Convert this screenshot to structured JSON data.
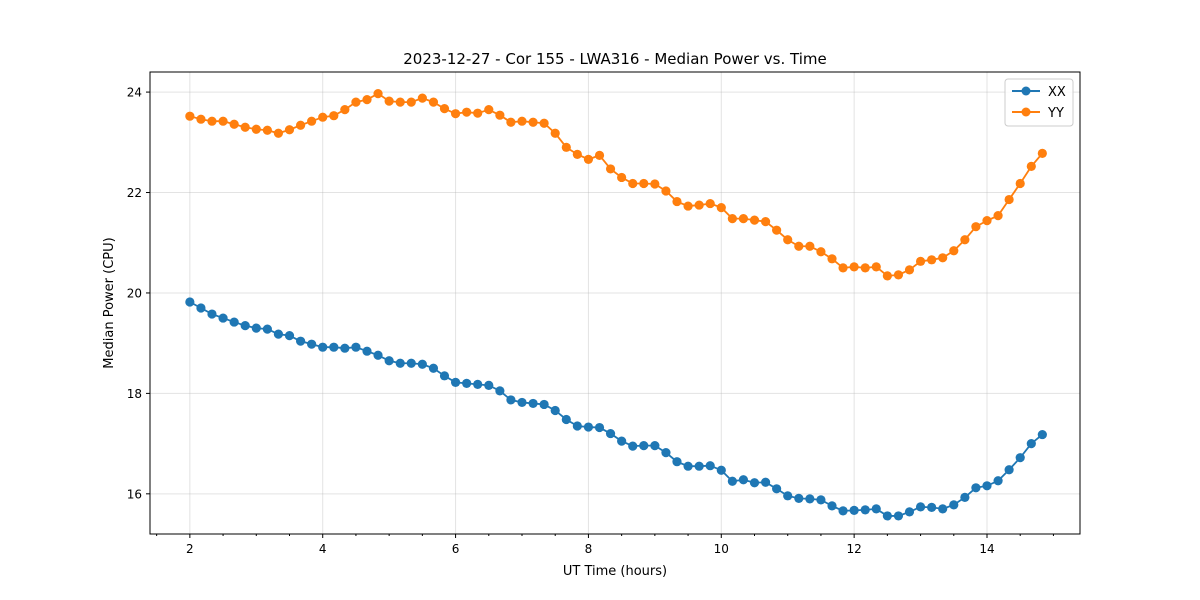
{
  "chart_data": {
    "type": "line",
    "title": "2023-12-27 - Cor 155 - LWA316 - Median Power vs. Time",
    "xlabel": "UT Time (hours)",
    "ylabel": "Median Power (CPU)",
    "xlim": [
      1.4,
      15.4
    ],
    "ylim": [
      15.2,
      24.4
    ],
    "xticks": [
      2,
      4,
      6,
      8,
      10,
      12,
      14
    ],
    "yticks": [
      16,
      18,
      20,
      22,
      24
    ],
    "grid": true,
    "legend_position": "top-right",
    "colors": {
      "XX": "#1f77b4",
      "YY": "#ff7f0e"
    },
    "x": [
      2.0,
      2.167,
      2.333,
      2.5,
      2.667,
      2.833,
      3.0,
      3.167,
      3.333,
      3.5,
      3.667,
      3.833,
      4.0,
      4.167,
      4.333,
      4.5,
      4.667,
      4.833,
      5.0,
      5.167,
      5.333,
      5.5,
      5.667,
      5.833,
      6.0,
      6.167,
      6.333,
      6.5,
      6.667,
      6.833,
      7.0,
      7.167,
      7.333,
      7.5,
      7.667,
      7.833,
      8.0,
      8.167,
      8.333,
      8.5,
      8.667,
      8.833,
      9.0,
      9.167,
      9.333,
      9.5,
      9.667,
      9.833,
      10.0,
      10.167,
      10.333,
      10.5,
      10.667,
      10.833,
      11.0,
      11.167,
      11.333,
      11.5,
      11.667,
      11.833,
      12.0,
      12.167,
      12.333,
      12.5,
      12.667,
      12.833,
      13.0,
      13.167,
      13.333,
      13.5,
      13.667,
      13.833,
      14.0,
      14.167,
      14.333,
      14.5,
      14.667,
      14.833
    ],
    "series": [
      {
        "name": "XX",
        "values": [
          19.82,
          19.7,
          19.58,
          19.5,
          19.42,
          19.35,
          19.3,
          19.28,
          19.18,
          19.15,
          19.04,
          18.98,
          18.92,
          18.92,
          18.9,
          18.92,
          18.84,
          18.76,
          18.65,
          18.6,
          18.6,
          18.58,
          18.5,
          18.35,
          18.22,
          18.2,
          18.18,
          18.16,
          18.05,
          17.87,
          17.82,
          17.8,
          17.78,
          17.66,
          17.48,
          17.35,
          17.33,
          17.32,
          17.2,
          17.05,
          16.95,
          16.96,
          16.96,
          16.82,
          16.64,
          16.55,
          16.55,
          16.56,
          16.47,
          16.25,
          16.28,
          16.22,
          16.23,
          16.1,
          15.96,
          15.91,
          15.9,
          15.88,
          15.76,
          15.66,
          15.67,
          15.68,
          15.7,
          15.56,
          15.56,
          15.64,
          15.74,
          15.73,
          15.7,
          15.78,
          15.93,
          16.12,
          16.16,
          16.26,
          16.48,
          16.72,
          17.0,
          17.18
        ]
      },
      {
        "name": "YY",
        "values": [
          23.52,
          23.46,
          23.42,
          23.42,
          23.36,
          23.3,
          23.26,
          23.24,
          23.18,
          23.25,
          23.34,
          23.42,
          23.5,
          23.53,
          23.65,
          23.8,
          23.85,
          23.97,
          23.82,
          23.8,
          23.8,
          23.88,
          23.8,
          23.67,
          23.57,
          23.6,
          23.58,
          23.65,
          23.54,
          23.4,
          23.42,
          23.4,
          23.38,
          23.18,
          22.9,
          22.76,
          22.66,
          22.74,
          22.47,
          22.3,
          22.18,
          22.18,
          22.17,
          22.03,
          21.82,
          21.73,
          21.75,
          21.78,
          21.7,
          21.48,
          21.48,
          21.45,
          21.42,
          21.25,
          21.06,
          20.93,
          20.93,
          20.82,
          20.68,
          20.5,
          20.52,
          20.5,
          20.52,
          20.34,
          20.36,
          20.46,
          20.63,
          20.66,
          20.7,
          20.84,
          21.06,
          21.32,
          21.44,
          21.54,
          21.86,
          22.18,
          22.52,
          22.78
        ]
      }
    ]
  }
}
